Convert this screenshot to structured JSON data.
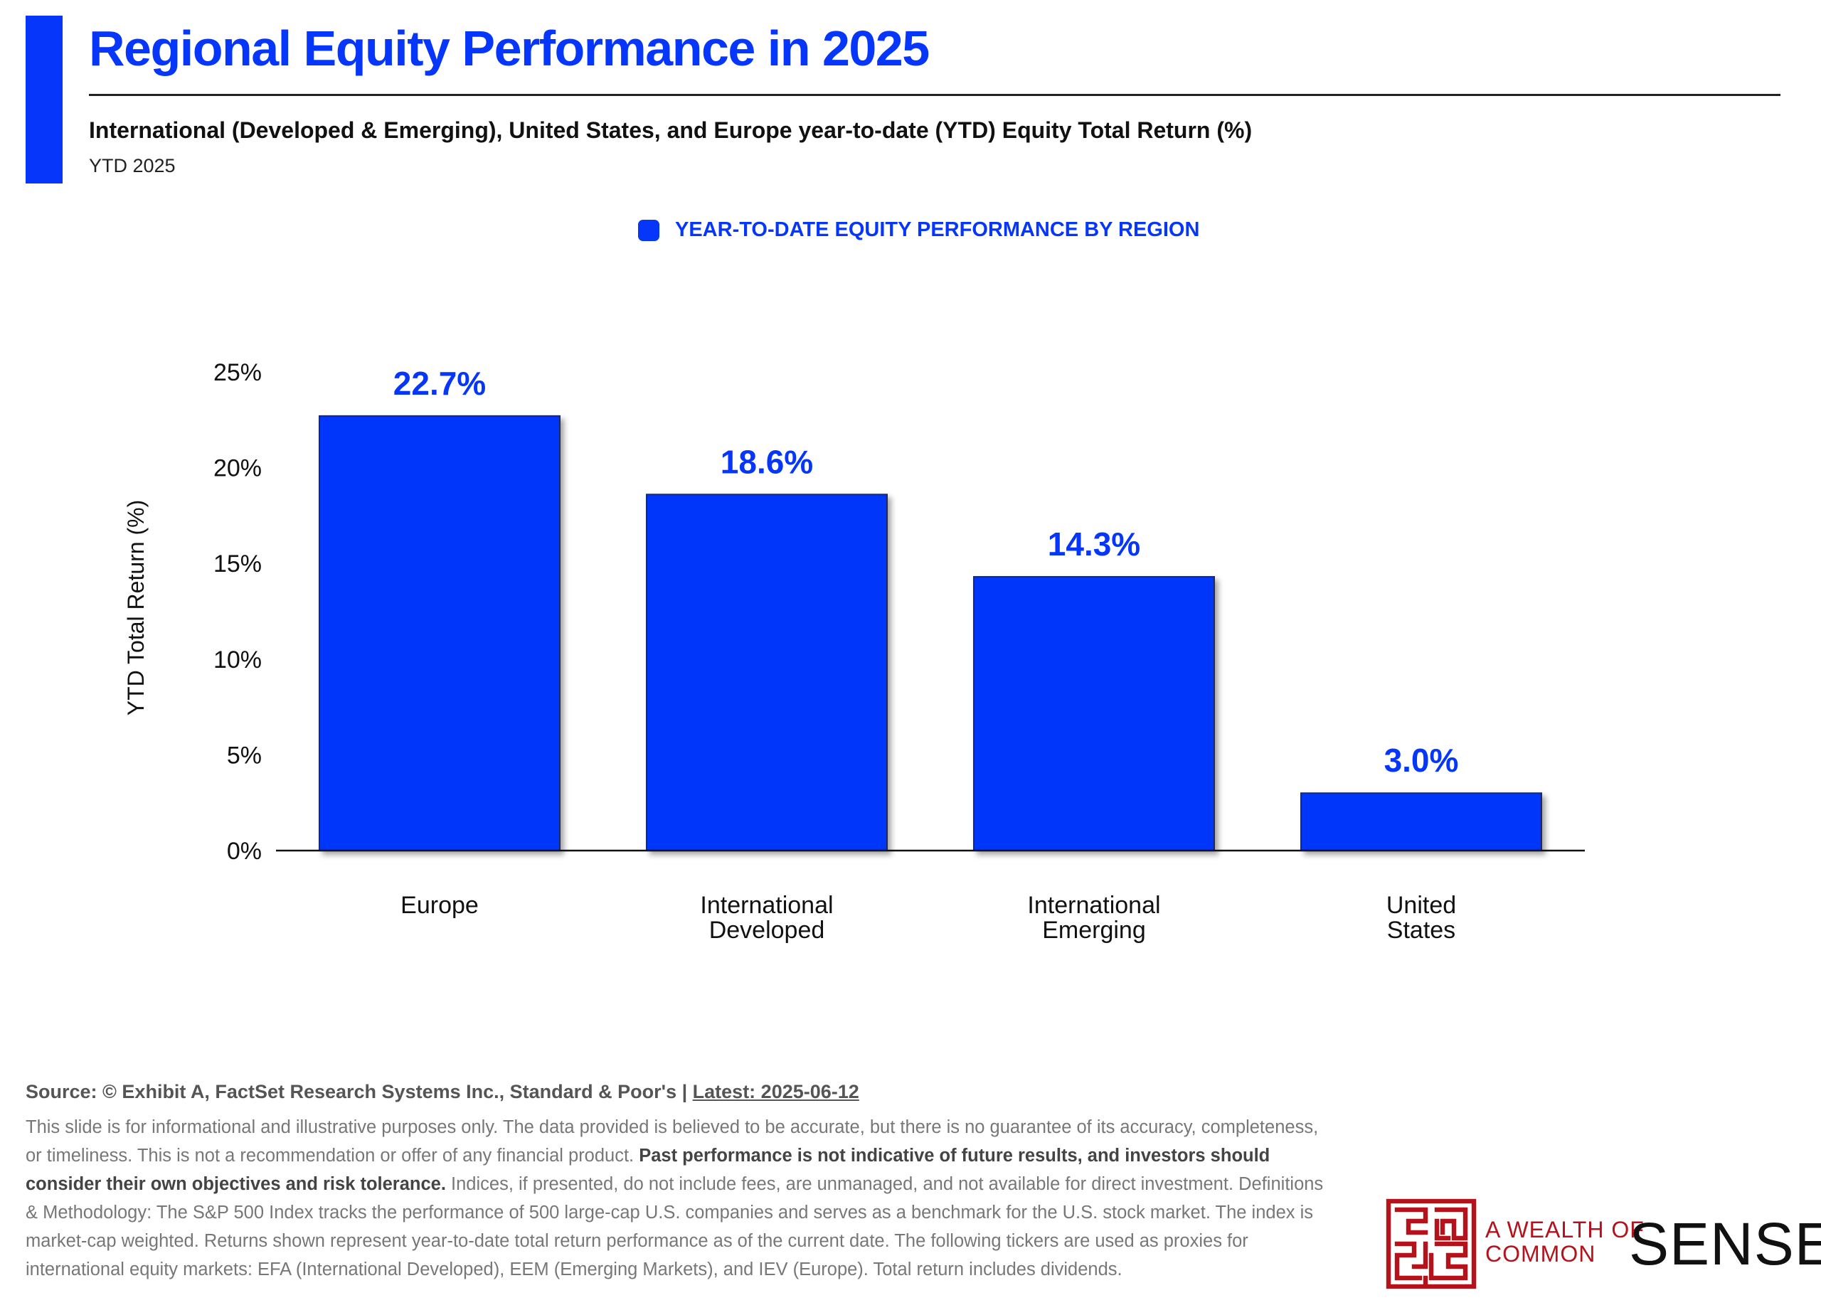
{
  "header": {
    "title": "Regional Equity Performance in 2025",
    "subtitle": "International (Developed & Emerging), United States, and Europe year-to-date (YTD) Equity Total Return (%)",
    "period": "YTD 2025",
    "accent_color": "#0536fa"
  },
  "legend": {
    "label": "YEAR-TO-DATE EQUITY PERFORMANCE BY REGION"
  },
  "chart_data": {
    "type": "bar",
    "categories": [
      "Europe",
      "International Developed",
      "International Emerging",
      "United States"
    ],
    "category_lines": [
      [
        "Europe"
      ],
      [
        "International",
        "Developed"
      ],
      [
        "International",
        "Emerging"
      ],
      [
        "United",
        "States"
      ]
    ],
    "series": [
      {
        "name": "YEAR-TO-DATE EQUITY PERFORMANCE BY REGION",
        "values": [
          22.7,
          18.6,
          14.3,
          3.0
        ]
      }
    ],
    "data_labels": [
      "22.7%",
      "18.6%",
      "14.3%",
      "3.0%"
    ],
    "ylabel": "YTD Total Return (%)",
    "ylim": [
      0,
      25
    ],
    "yticks": [
      0,
      5,
      10,
      15,
      20,
      25
    ],
    "ytick_labels": [
      "0%",
      "5%",
      "10%",
      "15%",
      "20%",
      "25%"
    ],
    "grid": false,
    "legend_position": "top-center",
    "bar_color": "#0536fa"
  },
  "footer": {
    "source_prefix": "Source: © Exhibit A, FactSet Research Systems Inc., Standard & Poor's | ",
    "source_latest": "Latest: 2025-06-12",
    "disclaimer_1": "This slide is for informational and illustrative purposes only. The data provided is believed to be accurate, but there is no guarantee of its accuracy, completeness, or timeliness. This is not a recommendation or offer of any financial product. ",
    "disclaimer_bold": "Past performance is not indicative of future results, and investors should consider their own objectives and risk tolerance.",
    "disclaimer_2": " Indices, if presented, do not include fees, are unmanaged, and not available for direct investment. Definitions & Methodology: The S&P 500 Index tracks the performance of 500 large-cap U.S. companies and serves as a benchmark for the U.S. stock market. The index is market-cap weighted. Returns shown represent year-to-date total return performance as of the current date. The following tickers are used as proxies for international equity markets: EFA (International Developed), EEM (Emerging Markets), and IEV (Europe). Total return includes dividends."
  },
  "logo": {
    "line1": "A WEALTH OF",
    "line2": "COMMON",
    "line3": "SENSE",
    "color": "#b5121b"
  }
}
